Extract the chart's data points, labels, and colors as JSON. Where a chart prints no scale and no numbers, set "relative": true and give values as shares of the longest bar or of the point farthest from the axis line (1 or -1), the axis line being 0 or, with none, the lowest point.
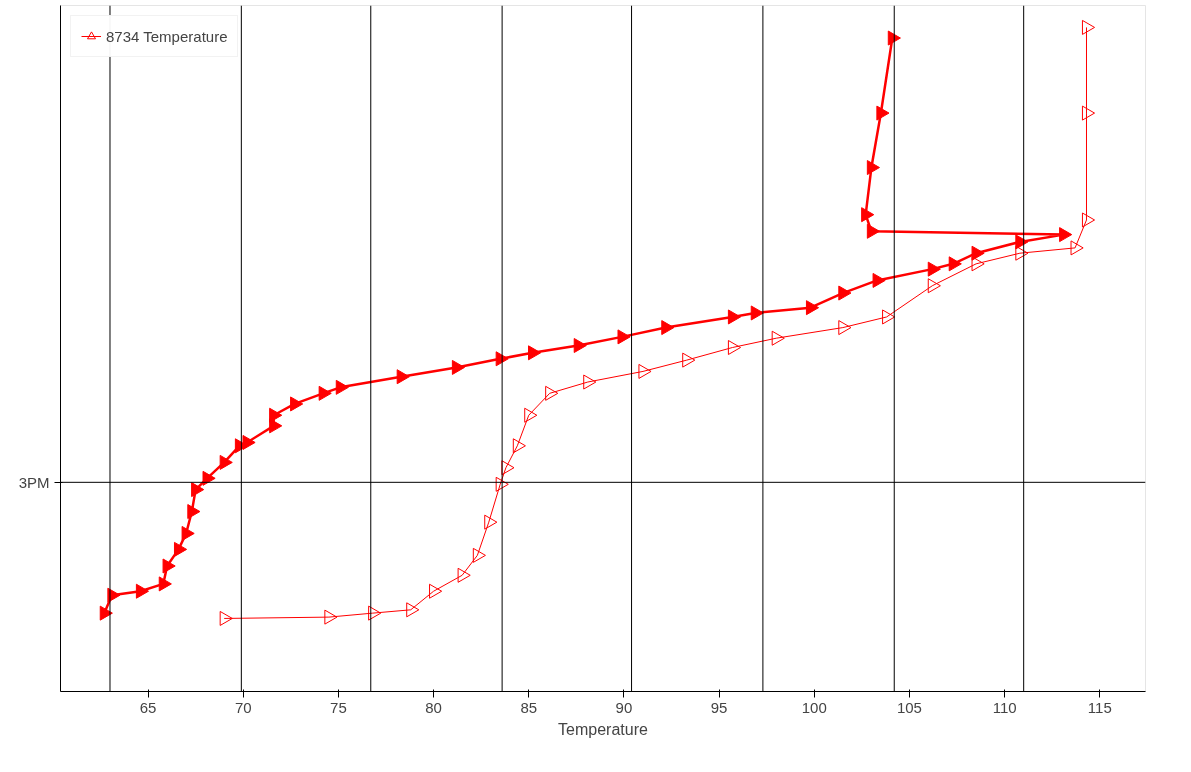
{
  "chart_data": {
    "type": "line",
    "xlabel": "Temperature",
    "xlim": [
      60.4,
      117.4
    ],
    "xticks": [
      65,
      70,
      75,
      80,
      85,
      90,
      95,
      100,
      105,
      110,
      115
    ],
    "relative": true,
    "marker": "triangle",
    "legend": "top left",
    "grid": false,
    "series": [
      {
        "color": "#ff0000",
        "x": [
          62.7,
          63.1,
          64.6,
          65.8,
          66.0,
          66.6,
          67.0,
          67.3,
          67.5,
          68.1,
          69.0,
          69.8,
          70.2,
          71.6,
          71.6,
          72.7,
          74.2,
          75.1,
          78.3,
          81.2,
          83.5,
          85.2,
          87.6,
          89.9,
          92.2,
          95.7,
          96.9,
          99.8,
          101.5,
          103.3,
          106.2,
          107.3,
          108.5,
          110.8,
          113.1,
          103.0,
          102.7,
          103.0,
          103.5,
          104.1
        ],
        "values": [
          0.118,
          0.145,
          0.151,
          0.162,
          0.189,
          0.214,
          0.238,
          0.271,
          0.304,
          0.321,
          0.345,
          0.37,
          0.375,
          0.4,
          0.416,
          0.433,
          0.449,
          0.458,
          0.474,
          0.488,
          0.501,
          0.51,
          0.521,
          0.534,
          0.548,
          0.564,
          0.57,
          0.578,
          0.6,
          0.619,
          0.636,
          0.644,
          0.66,
          0.677,
          0.688,
          0.693,
          0.718,
          0.789,
          0.871,
          0.984
        ]
      },
      {
        "name": "8734 Temperature",
        "color": "#ff0000",
        "x": [
          69.0,
          74.5,
          76.8,
          78.8,
          80.0,
          81.5,
          82.3,
          82.9,
          83.5,
          83.8,
          84.4,
          85.0,
          86.1,
          88.1,
          91.0,
          93.3,
          95.7,
          98.0,
          101.5,
          103.8,
          106.2,
          108.5,
          110.8,
          113.7,
          114.3,
          114.3,
          114.3
        ],
        "values": [
          0.11,
          0.112,
          0.118,
          0.123,
          0.151,
          0.175,
          0.205,
          0.255,
          0.312,
          0.337,
          0.37,
          0.416,
          0.449,
          0.466,
          0.482,
          0.499,
          0.518,
          0.532,
          0.548,
          0.564,
          0.611,
          0.644,
          0.66,
          0.668,
          0.71,
          0.871,
          1
        ]
      }
    ],
    "ref_lines": [
      {
        "axis": "y",
        "value": 0.315,
        "label": "3PM",
        "color": "#000000"
      },
      {
        "axis": "x",
        "value": 63.0,
        "color": "#000000"
      },
      {
        "axis": "x",
        "value": 69.9,
        "color": "#000000"
      },
      {
        "axis": "x",
        "value": 76.7,
        "color": "#000000"
      },
      {
        "axis": "x",
        "value": 83.6,
        "color": "#000000"
      },
      {
        "axis": "x",
        "value": 90.4,
        "color": "#000000"
      },
      {
        "axis": "x",
        "value": 97.3,
        "color": "#000000"
      },
      {
        "axis": "x",
        "value": 104.2,
        "color": "#000000"
      },
      {
        "axis": "x",
        "value": 111.0,
        "color": "#000000"
      }
    ]
  }
}
